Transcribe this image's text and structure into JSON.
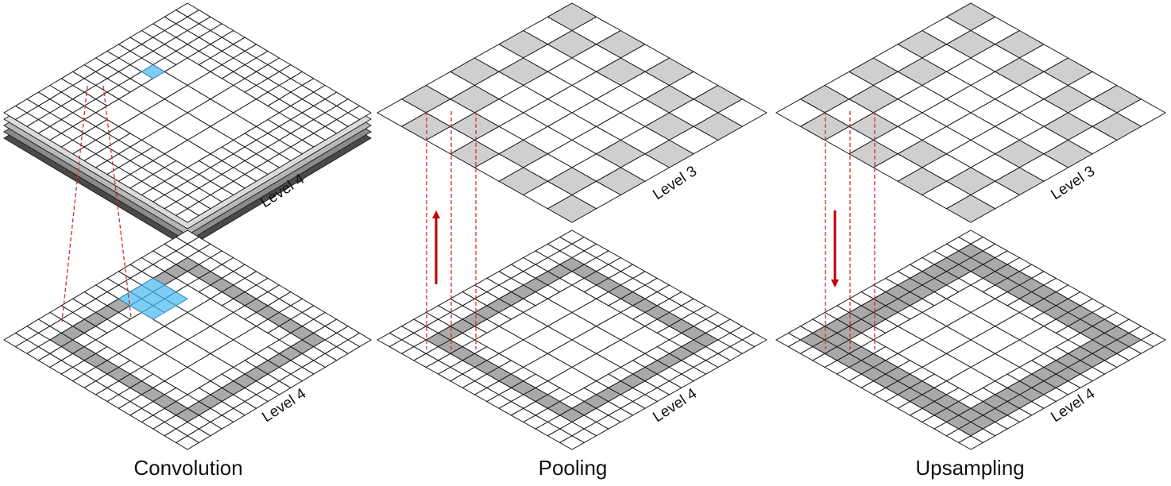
{
  "panels": [
    {
      "id": "convolution",
      "caption": "Convolution",
      "top_grid_label": "Level 4",
      "bottom_grid_label": "Level 4",
      "arrow": "none",
      "stack_colors": [
        "#4a4a4a",
        "#8a8a8a",
        "#b8b8b8",
        "#dcdcdc"
      ]
    },
    {
      "id": "pooling",
      "caption": "Pooling",
      "top_grid_label": "Level 3",
      "bottom_grid_label": "Level 4",
      "arrow": "up"
    },
    {
      "id": "upsampling",
      "caption": "Upsampling",
      "top_grid_label": "Level 3",
      "bottom_grid_label": "Level 4",
      "arrow": "down"
    }
  ],
  "colors": {
    "grid_line": "#1a1a1a",
    "occupied_fill": "#cfcfcf",
    "occupied_fill_fine": "#a9a9a9",
    "kernel_fill": "#7fcdf2",
    "kernel_stroke": "#2c8fc6",
    "guide_line": "#d42a2a",
    "arrow": "#c00000"
  }
}
